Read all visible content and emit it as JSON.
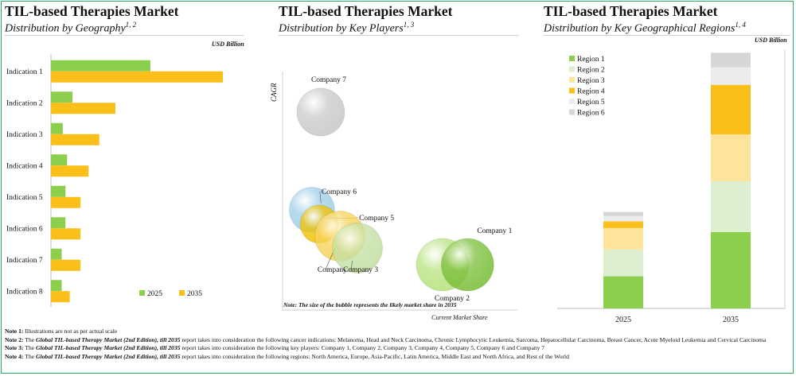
{
  "panels": {
    "geography": {
      "title": "TIL-based Therapies Market",
      "subtitle": "Distribution by Geography",
      "sup": "1, 2",
      "unit": "USD Billion"
    },
    "players": {
      "title": "TIL-based Therapies Market",
      "subtitle": "Distribution by Key Players",
      "sup": "1, 3",
      "note": "Note: The size of the bubble represents the likely market share in 2035"
    },
    "regions": {
      "title": "TIL-based Therapies Market",
      "subtitle": "Distribution by Key Geographical Regions",
      "sup": "1, 4",
      "unit": "USD Billion"
    }
  },
  "colors": {
    "green": "#8ccf4d",
    "orange": "#fbbf1a",
    "frame": "#27ae60"
  },
  "chart_data": [
    {
      "type": "bar",
      "orientation": "horizontal",
      "categories": [
        "Indication 1",
        "Indication 2",
        "Indication 3",
        "Indication 4",
        "Indication 5",
        "Indication 6",
        "Indication 7",
        "Indication 8"
      ],
      "series": [
        {
          "name": "2025",
          "color": "#8ccf4d",
          "values": [
            1.85,
            0.4,
            0.22,
            0.3,
            0.27,
            0.27,
            0.2,
            0.2
          ]
        },
        {
          "name": "2035",
          "color": "#fbbf1a",
          "values": [
            3.2,
            1.2,
            0.9,
            0.7,
            0.55,
            0.55,
            0.55,
            0.35
          ]
        }
      ],
      "xlim": [
        0,
        4.0
      ],
      "legend": "bottom-right"
    },
    {
      "type": "scatter",
      "xlabel": "Current Market Share",
      "ylabel": "CAGR",
      "points": [
        {
          "label": "Company 7",
          "x": 1.3,
          "y": 8.3,
          "size": 1.0,
          "color": "#c9c9c9"
        },
        {
          "label": "Company 6",
          "x": 1.0,
          "y": 4.2,
          "size": 0.95,
          "color": "#9fcfe8"
        },
        {
          "label": "Company 5",
          "x": 1.25,
          "y": 3.6,
          "size": 0.8,
          "color": "#f2c200"
        },
        {
          "label": "Company 4",
          "x": 1.95,
          "y": 3.1,
          "size": 1.05,
          "color": "#f7d35a"
        },
        {
          "label": "Company 3",
          "x": 2.55,
          "y": 2.6,
          "size": 1.05,
          "color": "#c3e0a3"
        },
        {
          "label": "Company 2",
          "x": 5.45,
          "y": 1.9,
          "size": 1.1,
          "color": "#b8e27e"
        },
        {
          "label": "Company 1",
          "x": 6.3,
          "y": 1.9,
          "size": 1.1,
          "color": "#7bbf3a"
        }
      ],
      "xlim": [
        0,
        8.0
      ],
      "ylim": [
        0,
        10.0
      ]
    },
    {
      "type": "bar",
      "stacked": true,
      "categories": [
        "2025",
        "2035"
      ],
      "series": [
        {
          "name": "Region 1",
          "color": "#8ccf4d",
          "values": [
            1.2,
            2.85
          ]
        },
        {
          "name": "Region 2",
          "color": "#dcefd0",
          "values": [
            1.0,
            1.9
          ]
        },
        {
          "name": "Region 3",
          "color": "#fde49a",
          "values": [
            0.8,
            1.75
          ]
        },
        {
          "name": "Region 4",
          "color": "#fbbf1a",
          "values": [
            0.25,
            1.85
          ]
        },
        {
          "name": "Region 5",
          "color": "#ececec",
          "values": [
            0.2,
            0.65
          ]
        },
        {
          "name": "Region 6",
          "color": "#d6d6d6",
          "values": [
            0.15,
            0.55
          ]
        }
      ],
      "ylim": [
        0,
        9.5
      ],
      "legend": "top-left"
    }
  ],
  "notes": [
    {
      "label": "Note 1:",
      "parts": [
        {
          "t": "Illustrations are not as per actual scale",
          "s": "n"
        }
      ]
    },
    {
      "label": "Note 2:",
      "parts": [
        {
          "t": "The ",
          "s": "n"
        },
        {
          "t": "Global TIL-based Therapy Market (2nd Edition), till 2035",
          "s": "i"
        },
        {
          "t": " report takes into consideration the following cancer indications: Melanoma, Head and Neck Carcinoma, Chronic Lymphocytic Leukemia, Sarcoma, Hepatocellular Carcinoma, Breast Cancer, Acute Myeloid Leukemia and Cervical Carcinoma",
          "s": "n"
        }
      ]
    },
    {
      "label": "Note 3:",
      "parts": [
        {
          "t": "The ",
          "s": "n"
        },
        {
          "t": "Global TIL-based Therapy Market (2nd Edition), till 2035",
          "s": "i"
        },
        {
          "t": " report takes into consideration the following key players: Company 1, Company 2, Company 3, Company 4, Company 5, Company 6 and Company 7",
          "s": "n"
        }
      ]
    },
    {
      "label": "Note 4:",
      "parts": [
        {
          "t": "The ",
          "s": "n"
        },
        {
          "t": "Global TIL-based Therapy Market (2nd Edition), till 2035",
          "s": "i"
        },
        {
          "t": " report takes into consideration the following regions: North America, Europe, Asia-Pacific, Latin America, Middle East and North Africa, and Rest of the World",
          "s": "n"
        }
      ]
    }
  ]
}
